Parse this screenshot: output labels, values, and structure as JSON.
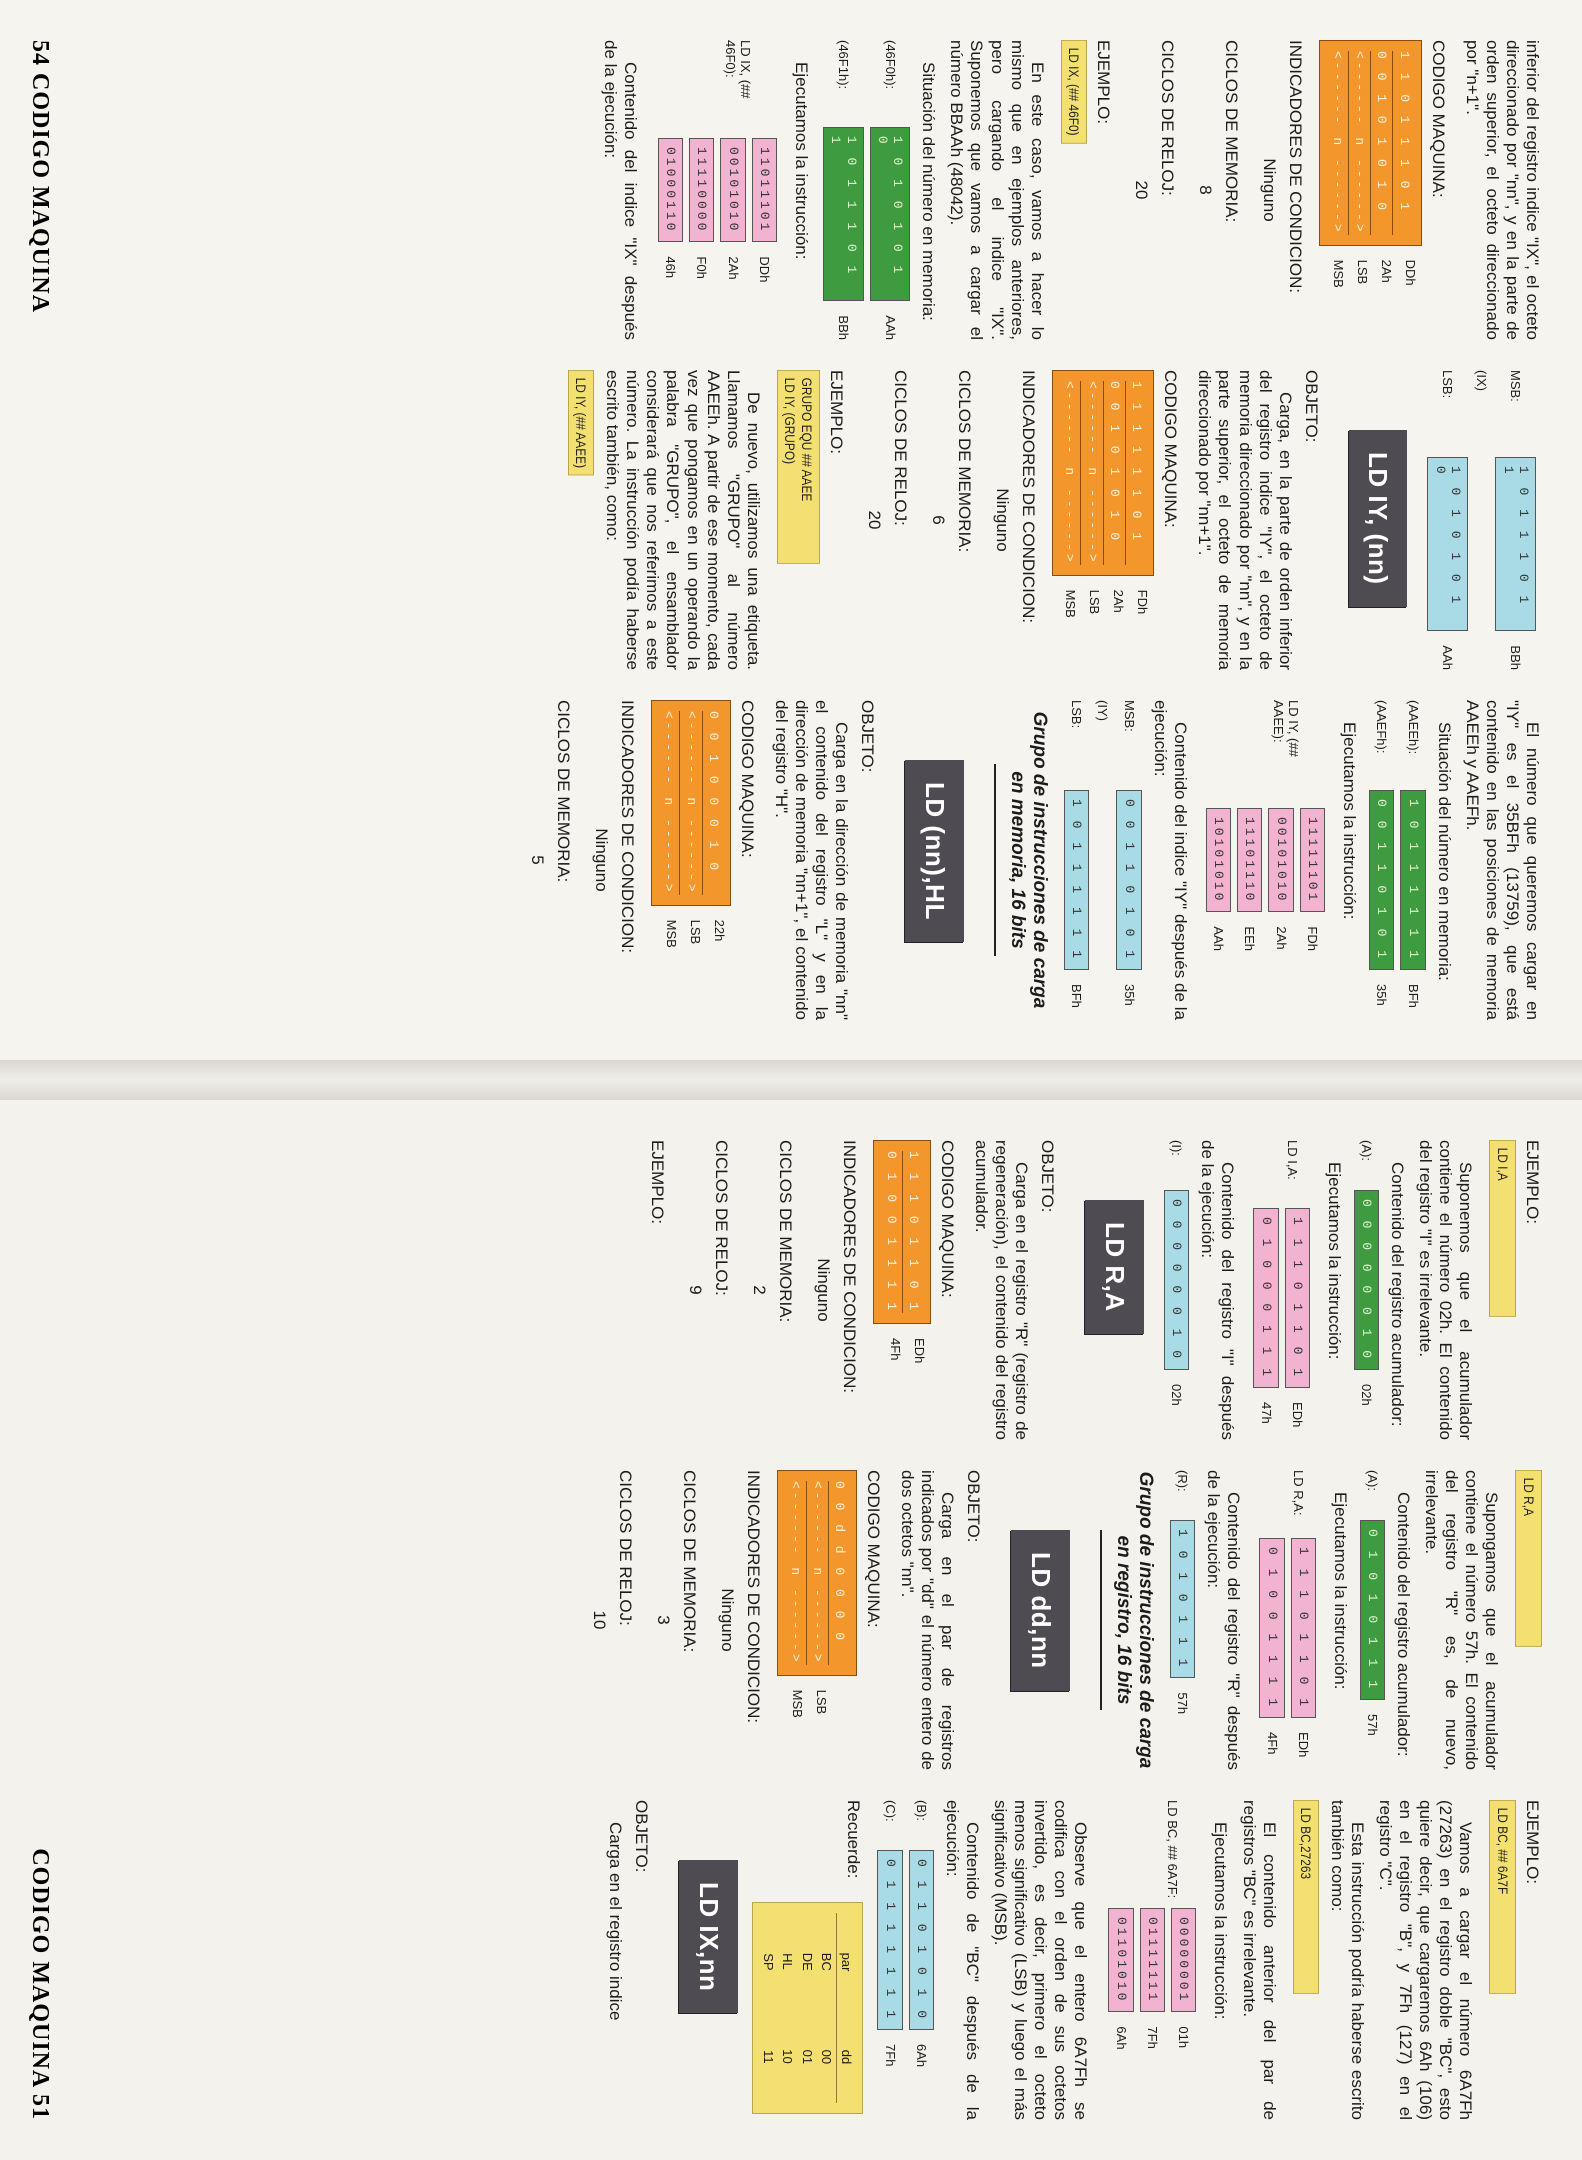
{
  "p54": {
    "footer": "54 CODIGO MAQUINA",
    "c1": {
      "intro": "inferior del registro indice \"IX\", el octeto direccionado por \"nn\", y en la parte de orden superior, el octeto direccionado por \"n+1\".",
      "mc_label": "CODIGO MAQUINA:",
      "mc_rows": [
        "1 1 0 1 1 1 0 1",
        "0 0 1 0 1 0 1 0",
        "<------ n ------>",
        "<------ n ------>"
      ],
      "mc_hex": [
        "DDh",
        "2Ah",
        "LSB",
        "MSB"
      ],
      "ind_label": "INDICADORES DE CONDICION:",
      "ind_val": "Ninguno",
      "mem_label": "CICLOS DE MEMORIA:",
      "mem_val": "8",
      "clk_label": "CICLOS DE RELOJ:",
      "clk_val": "20",
      "ej_label": "EJEMPLO:",
      "ej_box": "LD IX, (## 46F0)",
      "p2": "En este caso, vamos a hacer lo mismo que en ejemplos anteriores, pero cargando el indice \"IX\". Suponemos que vamos a cargar el número BBAAh (48042).",
      "p3": "Situación del número en memoria:",
      "mem_rows": [
        {
          "lab": "(46F0h):",
          "bits": "1 0 1 0 1 0 1 0",
          "hx": "AAh"
        },
        {
          "lab": "(46F1h):",
          "bits": "1 0 1 1 1 0 1 1",
          "hx": "BBh"
        }
      ],
      "p4": "Ejecutamos la instrucción:",
      "ins_lab": "LD IX, (## 46F0):",
      "ins_rows": [
        {
          "bits": "11011101",
          "hx": "DDh"
        },
        {
          "bits": "00101010",
          "hx": "2Ah"
        },
        {
          "bits": "11110000",
          "hx": "F0h"
        },
        {
          "bits": "01000110",
          "hx": "46h"
        }
      ],
      "p5": "Contenido del indice \"IX\" después de la ejecución:"
    },
    "c2": {
      "reg_rows": [
        {
          "lab": "MSB:",
          "bits": "1 0 1 1 1 0 1 1",
          "hx": "BBh"
        },
        {
          "lab": "(IX)",
          "bits": "",
          "hx": ""
        },
        {
          "lab": "LSB:",
          "bits": "1 0 1 0 1 0 1 0",
          "hx": "AAh"
        }
      ],
      "mnem": "LD IY, (nn)",
      "obj_label": "OBJETO:",
      "obj": "Carga, en la parte de orden inferior del registro indice \"IY\", el octeto de memoria direccionado por \"nn\", y en la parte superior, el octeto de memoria direccionado por \"nn+1\".",
      "mc_label": "CODIGO MAQUINA:",
      "mc_rows": [
        "1 1 1 1 1 1 0 1",
        "0 0 1 0 1 0 1 0",
        "<------ n ------>",
        "<------ n ------>"
      ],
      "mc_hex": [
        "FDh",
        "2Ah",
        "LSB",
        "MSB"
      ],
      "ind_label": "INDICADORES DE CONDICION:",
      "ind_val": "Ninguno",
      "mem_label": "CICLOS DE MEMORIA:",
      "mem_val": "6",
      "clk_label": "CICLOS DE RELOJ:",
      "clk_val": "20",
      "ej_label": "EJEMPLO:",
      "ej_box1": "GRUPO EQU ## AAEE",
      "ej_box2": "LD IY, (GRUPO)",
      "p2": "De nuevo, utilizamos una etiqueta. Llamamos \"GRUPO\" al número AAEEh. A partir de ese momento, cada vez que pongamos en un operando la palabra \"GRUPO\", el ensamblador considerará que nos referimos a este número. La instrucción podía haberse escrito también, como:",
      "ej_box3": "LD IY, (## AAEE)"
    },
    "c3": {
      "p1": "El número que queremos cargar en \"IY\" es el 35BFh (13759), que está contenido en las posiciones de memoria AAEEh y AAEFh.",
      "p2": "Situación del número en memoria:",
      "mem_rows": [
        {
          "lab": "(AAEEh):",
          "bits": "1 0 1 1 1 1 1 1",
          "hx": "BFh"
        },
        {
          "lab": "(AAEFh):",
          "bits": "0 0 1 1 0 1 0 1",
          "hx": "35h"
        }
      ],
      "p3": "Ejecutamos la instrucción:",
      "ins_lab": "LD IY, (## AAEE):",
      "ins_rows": [
        {
          "bits": "11111101",
          "hx": "FDh"
        },
        {
          "bits": "00101010",
          "hx": "2Ah"
        },
        {
          "bits": "11101110",
          "hx": "EEh"
        },
        {
          "bits": "10101010",
          "hx": "AAh"
        }
      ],
      "p4": "Contenido del indice \"IY\" después de la ejecución:",
      "reg_rows": [
        {
          "lab": "MSB:",
          "bits": "0 0 1 1 0 1 0 1",
          "hx": "35h"
        },
        {
          "lab": "(IY)",
          "bits": "",
          "hx": ""
        },
        {
          "lab": "LSB:",
          "bits": "1 0 1 1 1 1 1 1",
          "hx": "BFh"
        }
      ],
      "sec": "Grupo de instrucciones de carga en memoria, 16 bits",
      "mnem": "LD (nn),HL",
      "obj_label": "OBJETO:",
      "obj": "Carga en la dirección de memoria \"nn\" el contenido del registro \"L\" y en la dirección de memoria \"nn+1\", el contenido del registro \"H\".",
      "mc_label": "CODIGO MAQUINA:",
      "mc_rows": [
        "0 0 1 0 0 0 1 0",
        "<------ n ------>",
        "<------ n ------>"
      ],
      "mc_hex": [
        "22h",
        "LSB",
        "MSB"
      ],
      "ind_label": "INDICADORES DE CONDICION:",
      "ind_val": "Ninguno",
      "mem_label": "CICLOS DE MEMORIA:",
      "mem_val": "5"
    }
  },
  "p51": {
    "footer": "CODIGO MAQUINA 51",
    "c1": {
      "ej_label": "EJEMPLO:",
      "ej_box": "LD I,A",
      "p1": "Suponemos que el acumulador contiene el número 02h. El contenido del registro \"I\" es irrelevante.",
      "p2": "Contenido del registro acumulador:",
      "acc": {
        "lab": "(A):",
        "bits": "0 0 0 0 0 0 1 0",
        "hx": "02h"
      },
      "p3": "Ejecutamos la instrucción:",
      "ins_lab": "LD I,A:",
      "ins_rows": [
        {
          "bits": "1 1 1 0 1 1 0 1",
          "hx": "EDh"
        },
        {
          "bits": "0 1 0 0 0 1 1 1",
          "hx": "47h"
        }
      ],
      "p4": "Contenido del registro \"I\" después de la ejecución:",
      "res": {
        "lab": "(I):",
        "bits": "0 0 0 0 0 0 1 0",
        "hx": "02h"
      },
      "mnem": "LD R,A",
      "obj_label": "OBJETO:",
      "obj": "Carga en el registro \"R\" (registro de regeneración), el contenido del registro acumulador.",
      "mc_label": "CODIGO MAQUINA:",
      "mc_rows": [
        "1 1 1 0 1 1 0 1",
        "0 1 0 0 1 1 1 1"
      ],
      "mc_hex": [
        "EDh",
        "4Fh"
      ],
      "ind_label": "INDICADORES DE CONDICION:",
      "ind_val": "Ninguno",
      "mem_label": "CICLOS DE MEMORIA:",
      "mem_val": "2",
      "clk_label": "CICLOS DE RELOJ:",
      "clk_val": "9",
      "ej2_label": "EJEMPLO:"
    },
    "c2": {
      "ej_box": "LD R,A",
      "p1": "Supongamos que el acumulador contiene el número 57h. El contenido del registro \"R\" es, de nuevo, irrelevante.",
      "p2": "Contenido del registro acumulador:",
      "acc": {
        "lab": "(A):",
        "bits": "0 1 0 1 0 1 1 1",
        "hx": "57h"
      },
      "p3": "Ejecutamos la instrucción:",
      "ins_lab": "LD R,A:",
      "ins_rows": [
        {
          "bits": "1 1 1 0 1 1 0 1",
          "hx": "EDh"
        },
        {
          "bits": "0 1 0 0 1 1 1 1",
          "hx": "4Fh"
        }
      ],
      "p4": "Contenido del registro \"R\" después de la ejecución:",
      "res": {
        "lab": "(R):",
        "bits": "1 0 1 0 1 1 1",
        "hx": "57h"
      },
      "sec": "Grupo de instrucciones de carga en registro, 16 bits",
      "mnem": "LD dd,nn",
      "obj_label": "OBJETO:",
      "obj": "Carga en el par de registros indicados por \"dd\" el número entero de dos octetos \"nn\".",
      "mc_label": "CODIGO MAQUINA:",
      "mc_rows": [
        "0 0 d d 0 0 0 0",
        "<------ n ------>",
        "<------ n ------>"
      ],
      "mc_hex": [
        "",
        "LSB",
        "MSB"
      ],
      "ind_label": "INDICADORES DE CONDICION:",
      "ind_val": "Ninguno",
      "mem_label": "CICLOS DE MEMORIA:",
      "mem_val": "3",
      "clk_label": "CICLOS DE RELOJ:",
      "clk_val": "10"
    },
    "c3": {
      "ej_label": "EJEMPLO:",
      "ej_box": "LD BC, ## 6A7F",
      "p1": "Vamos a cargar el número 6A7Fh (27263) en el registro doble \"BC\", esto quiere decir, que cargaremos 6Ah (106) en el registro \"B\", y 7Fh (127) en el registro \"C\".",
      "p2": "Esta instrucción podría haberse escrito también como:",
      "ej_box2": "LD BC,27263",
      "p3": "El contenido anterior del par de registros \"BC\" es irrelevante.",
      "p4": "Ejecutamos la instrucción:",
      "ins_lab": "LD BC, ## 6A7F:",
      "ins_rows": [
        {
          "bits": "00000001",
          "hx": "01h"
        },
        {
          "bits": "01111111",
          "hx": "7Fh"
        },
        {
          "bits": "01101010",
          "hx": "6Ah"
        }
      ],
      "p5": "Observe que el entero 6A7Fh se codifica con el orden de sus octetos invertido, es decir, primero el octeto menos significativo (LSB) y luego el más significativo (MSB).",
      "p6": "Contenido de \"BC\" después de la ejecución:",
      "bc_rows": [
        {
          "lab": "(B):",
          "bits": "0 1 1 0 1 0 1 0",
          "hx": "6Ah"
        },
        {
          "lab": "(C):",
          "bits": "0 1 1 1 1 1 1 1",
          "hx": "7Fh"
        }
      ],
      "p7": "Recuerde:",
      "table_head": [
        "par",
        "dd"
      ],
      "table_rows": [
        [
          "BC",
          "00"
        ],
        [
          "DE",
          "01"
        ],
        [
          "HL",
          "10"
        ],
        [
          "SP",
          "11"
        ]
      ],
      "mnem": "LD IX,nn",
      "obj_label": "OBJETO:",
      "obj": "Carga en el registro indice"
    }
  }
}
